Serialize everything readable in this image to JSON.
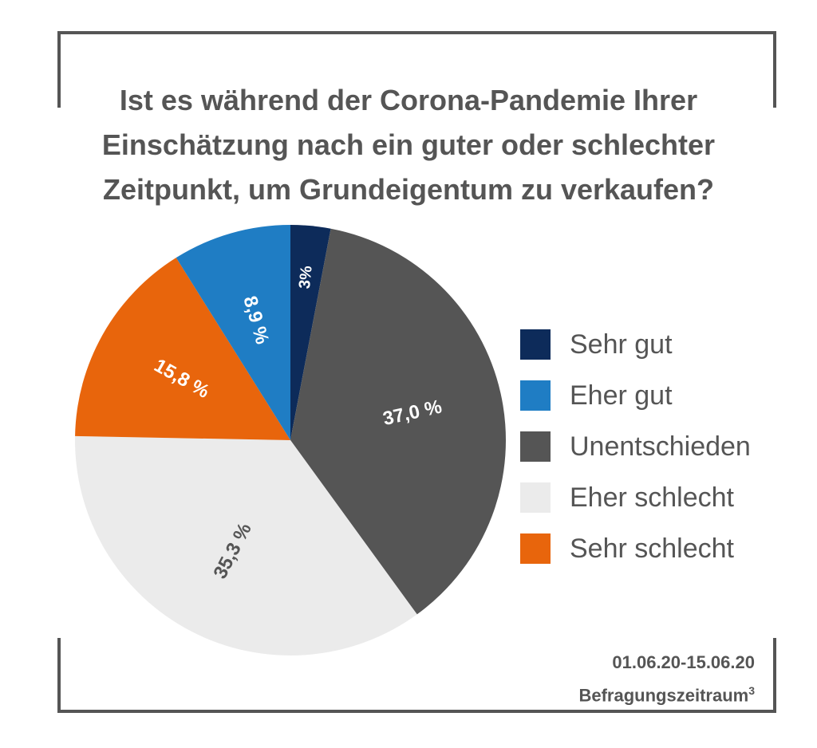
{
  "chart_data": {
    "type": "pie",
    "title_lines": [
      "Ist es während der Corona-Pandemie Ihrer",
      "Einschätzung nach ein guter oder schlechter",
      "Zeitpunkt, um Grundeigentum zu verkaufen?"
    ],
    "slices": [
      {
        "name": "Sehr gut",
        "value": 3.0,
        "label": "3%",
        "color": "#0d2b5a",
        "label_color": "#ffffff"
      },
      {
        "name": "Unentschieden",
        "value": 37.0,
        "label": "37,0 %",
        "color": "#555555",
        "label_color": "#ffffff"
      },
      {
        "name": "Eher schlecht",
        "value": 35.3,
        "label": "35,3 %",
        "color": "#ebebeb",
        "label_color": "#555555"
      },
      {
        "name": "Sehr schlecht",
        "value": 15.8,
        "label": "15,8 %",
        "color": "#e8650c",
        "label_color": "#ffffff"
      },
      {
        "name": "Eher gut",
        "value": 8.9,
        "label": "8,9 %",
        "color": "#1f7dc4",
        "label_color": "#ffffff"
      }
    ],
    "legend_order": [
      "Sehr gut",
      "Eher gut",
      "Unentschieden",
      "Eher schlecht",
      "Sehr schlecht"
    ],
    "legend_placement": "right"
  },
  "footer": {
    "period": "01.06.20-15.06.20",
    "period_label": "Befragungszeitraum",
    "footnote": "3"
  }
}
